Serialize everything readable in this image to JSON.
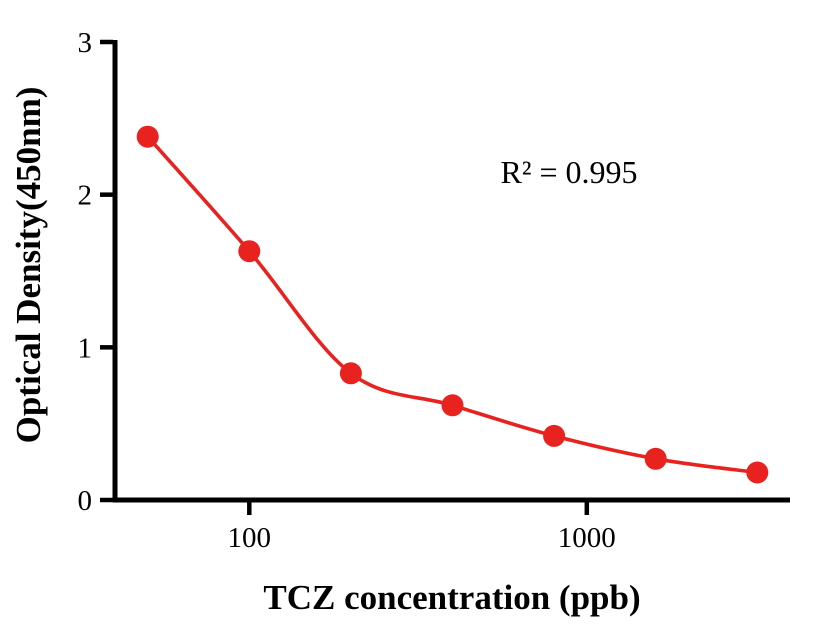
{
  "page": {
    "background": "#ffffff"
  },
  "chart_data": {
    "type": "scatter",
    "title": "",
    "xlabel": "TCZ concentration (ppb)",
    "ylabel": "Optical Density(450nm)",
    "annotation": "R² = 0.995",
    "x": [
      50,
      100,
      200,
      400,
      800,
      1600,
      3200
    ],
    "y": [
      2.38,
      1.63,
      0.83,
      0.62,
      0.42,
      0.27,
      0.18
    ],
    "fit_line": "nonlinear regression curve through points",
    "x_scale": "log10",
    "x_domain": [
      40,
      4000
    ],
    "x_ticks": [
      "100",
      "1000"
    ],
    "y_domain": [
      0,
      3
    ],
    "y_ticks": [
      "0",
      "1",
      "2",
      "3"
    ],
    "grid": "off",
    "legend": "none",
    "point_color": "#e8221f",
    "line_color": "#e8221f",
    "axis_color": "#000000"
  }
}
